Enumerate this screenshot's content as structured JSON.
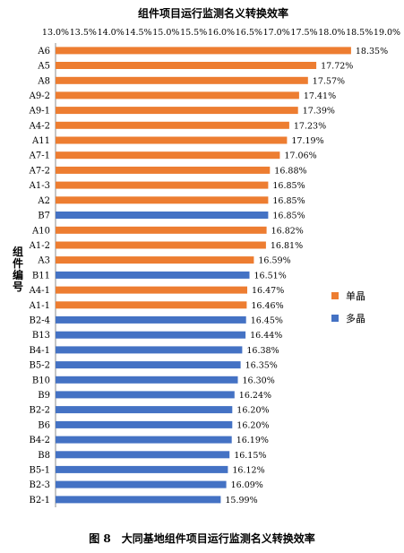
{
  "chart_data": {
    "type": "bar",
    "orientation": "horizontal",
    "title": "组件项目运行监测名义转换效率",
    "ylabel": "组件编号",
    "xlabel": "",
    "xlim": [
      13.0,
      19.0
    ],
    "x_ticks": [
      "13.0%",
      "13.5%",
      "14.0%",
      "14.5%",
      "15.0%",
      "15.5%",
      "16.0%",
      "16.5%",
      "17.0%",
      "17.5%",
      "18.0%",
      "18.5%",
      "19.0%"
    ],
    "x_tick_values": [
      13.0,
      13.5,
      14.0,
      14.5,
      15.0,
      15.5,
      16.0,
      16.5,
      17.0,
      17.5,
      18.0,
      18.5,
      19.0
    ],
    "x_axis_position": "top",
    "grid": false,
    "legend_position": "right",
    "series": [
      {
        "name": "单晶",
        "color": "#ed7d31"
      },
      {
        "name": "多晶",
        "color": "#4472c4"
      }
    ],
    "categories": [
      "A6",
      "A5",
      "A8",
      "A9-2",
      "A9-1",
      "A4-2",
      "A11",
      "A7-1",
      "A7-2",
      "A1-3",
      "A2",
      "B7",
      "A10",
      "A1-2",
      "A3",
      "B11",
      "A4-1",
      "A1-1",
      "B2-4",
      "B13",
      "B4-1",
      "B5-2",
      "B10",
      "B9",
      "B2-2",
      "B6",
      "B4-2",
      "B8",
      "B5-1",
      "B2-3",
      "B2-1"
    ],
    "values": [
      18.35,
      17.72,
      17.57,
      17.41,
      17.39,
      17.23,
      17.19,
      17.06,
      16.88,
      16.85,
      16.85,
      16.85,
      16.82,
      16.81,
      16.59,
      16.51,
      16.47,
      16.46,
      16.45,
      16.44,
      16.38,
      16.35,
      16.3,
      16.24,
      16.2,
      16.2,
      16.19,
      16.15,
      16.12,
      16.09,
      15.99
    ],
    "value_labels": [
      "18.35%",
      "17.72%",
      "17.57%",
      "17.41%",
      "17.39%",
      "17.23%",
      "17.19%",
      "17.06%",
      "16.88%",
      "16.85%",
      "16.85%",
      "16.85%",
      "16.82%",
      "16.81%",
      "16.59%",
      "16.51%",
      "16.47%",
      "16.46%",
      "16.45%",
      "16.44%",
      "16.38%",
      "16.35%",
      "16.30%",
      "16.24%",
      "16.20%",
      "16.20%",
      "16.19%",
      "16.15%",
      "16.12%",
      "16.09%",
      "15.99%"
    ],
    "series_index": [
      0,
      0,
      0,
      0,
      0,
      0,
      0,
      0,
      0,
      0,
      0,
      1,
      0,
      0,
      0,
      1,
      0,
      0,
      1,
      1,
      1,
      1,
      1,
      1,
      1,
      1,
      1,
      1,
      1,
      1,
      1
    ]
  },
  "caption": "图 8　大同基地组件项目运行监测名义转换效率"
}
